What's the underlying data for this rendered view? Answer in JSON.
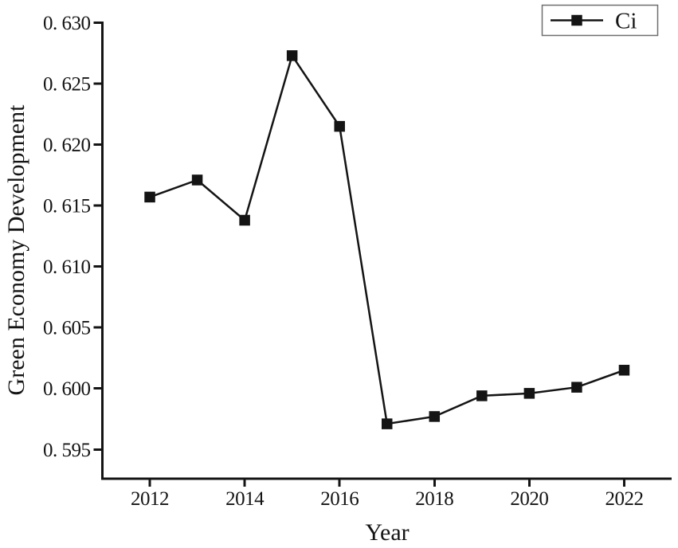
{
  "figure": {
    "background": "#ffffff",
    "axis_color": "#141414",
    "legend_border_color": "#6e6e6e"
  },
  "chart_data": {
    "type": "line",
    "title": "",
    "xlabel": "Year",
    "ylabel": "Green Economy Development",
    "x": [
      2012,
      2013,
      2014,
      2015,
      2016,
      2017,
      2018,
      2019,
      2020,
      2021,
      2022
    ],
    "series": [
      {
        "name": "Ci",
        "color": "#141414",
        "marker": "square",
        "values": [
          0.6157,
          0.6171,
          0.6138,
          0.6273,
          0.6215,
          0.5971,
          0.5977,
          0.5994,
          0.5996,
          0.6001,
          0.6015
        ]
      }
    ],
    "xticks": {
      "values": [
        2012,
        2014,
        2016,
        2018,
        2020,
        2022
      ],
      "labels": [
        "2012",
        "2014",
        "2016",
        "2018",
        "2020",
        "2022"
      ]
    },
    "yticks": {
      "values": [
        0.595,
        0.6,
        0.605,
        0.61,
        0.615,
        0.62,
        0.625,
        0.63
      ],
      "labels": [
        "0. 595",
        "0. 600",
        "0. 605",
        "0. 610",
        "0. 615",
        "0. 620",
        "0. 625",
        "0. 630"
      ]
    },
    "xlim": [
      2011.0,
      2023.0
    ],
    "ylim": [
      0.5926,
      0.6301
    ],
    "grid": false,
    "legend": {
      "label": "Ci",
      "position": "top-right"
    }
  }
}
